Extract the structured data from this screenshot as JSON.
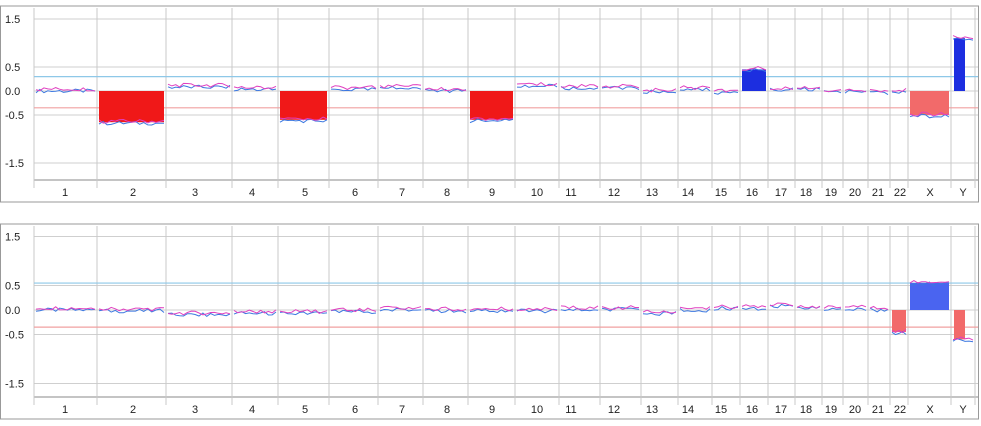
{
  "chart_data": [
    {
      "type": "area",
      "ylim": [
        -1.8,
        1.6
      ],
      "yticks": [
        "1.5",
        "0.5",
        "0.0",
        "-0.5",
        "-1.5"
      ],
      "ytick_values": [
        1.5,
        0.5,
        0.0,
        -0.5,
        -1.5
      ],
      "threshold_gain": 0.3,
      "threshold_loss": -0.35,
      "chromosomes": [
        "1",
        "2",
        "3",
        "4",
        "5",
        "6",
        "7",
        "8",
        "9",
        "10",
        "11",
        "12",
        "13",
        "14",
        "15",
        "16",
        "17",
        "18",
        "19",
        "20",
        "21",
        "22",
        "X",
        "Y"
      ],
      "levels": [
        0.02,
        -0.65,
        0.1,
        0.05,
        -0.6,
        0.05,
        0.08,
        0.02,
        -0.6,
        0.12,
        0.08,
        0.08,
        0.0,
        0.05,
        -0.02,
        0.45,
        0.05,
        0.05,
        0.0,
        0.0,
        -0.02,
        0.0,
        -0.5,
        1.1
      ],
      "aberrations": [
        {
          "chromosome": "2",
          "type": "loss",
          "value": -0.65
        },
        {
          "chromosome": "5",
          "type": "loss",
          "value": -0.6
        },
        {
          "chromosome": "9",
          "type": "loss",
          "value": -0.6
        },
        {
          "chromosome": "16",
          "type": "gain",
          "value": 0.45
        },
        {
          "chromosome": "X",
          "type": "loss",
          "value": -0.5
        },
        {
          "chromosome": "Y",
          "type": "gain",
          "value": 1.1
        }
      ]
    },
    {
      "type": "area",
      "ylim": [
        -1.8,
        1.6
      ],
      "yticks": [
        "1.5",
        "0.5",
        "0.0",
        "-0.5",
        "-1.5"
      ],
      "ytick_values": [
        1.5,
        0.5,
        0.0,
        -0.5,
        -1.5
      ],
      "threshold_gain": 0.55,
      "threshold_loss": -0.35,
      "chromosomes": [
        "1",
        "2",
        "3",
        "4",
        "5",
        "6",
        "7",
        "8",
        "9",
        "10",
        "11",
        "12",
        "13",
        "14",
        "15",
        "16",
        "17",
        "18",
        "19",
        "20",
        "21",
        "22",
        "X",
        "Y"
      ],
      "levels": [
        0.02,
        0.0,
        -0.08,
        -0.05,
        -0.05,
        -0.02,
        0.02,
        0.0,
        0.0,
        0.0,
        0.03,
        0.03,
        -0.05,
        0.02,
        0.05,
        0.05,
        0.1,
        0.05,
        0.05,
        0.05,
        0.02,
        -0.45,
        0.55,
        -0.6
      ],
      "aberrations": [
        {
          "chromosome": "22",
          "type": "loss",
          "value": -0.45
        },
        {
          "chromosome": "X",
          "type": "gain",
          "value": 0.55
        },
        {
          "chromosome": "Y",
          "type": "loss",
          "value": -0.6
        }
      ]
    }
  ]
}
